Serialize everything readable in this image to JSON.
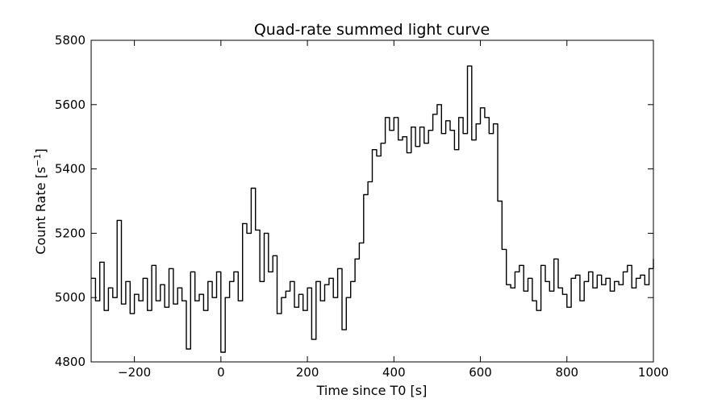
{
  "chart_data": {
    "type": "line",
    "title": "Quad-rate summed light curve",
    "xlabel": "Time since T0 [s]",
    "ylabel": "Count Rate [s",
    "ylabel_sup": "−1",
    "ylabel_end": "]",
    "xlim": [
      -300,
      1000
    ],
    "ylim": [
      4800,
      5800
    ],
    "xticks": [
      -200,
      0,
      200,
      400,
      600,
      800,
      1000
    ],
    "xtick_labels": [
      "−200",
      "0",
      "200",
      "400",
      "600",
      "800",
      "1000"
    ],
    "yticks": [
      4800,
      5000,
      5200,
      5400,
      5600,
      5800
    ],
    "ytick_labels": [
      "4800",
      "5000",
      "5200",
      "5400",
      "5600",
      "5800"
    ],
    "grid": false,
    "legend": false,
    "line_color": "#000000",
    "series": [
      {
        "x": [
          -300,
          -290,
          -280,
          -270,
          -260,
          -250,
          -240,
          -230,
          -220,
          -210,
          -200,
          -190,
          -180,
          -170,
          -160,
          -150,
          -140,
          -130,
          -120,
          -110,
          -100,
          -90,
          -80,
          -70,
          -60,
          -50,
          -40,
          -30,
          -20,
          -10,
          0,
          10,
          20,
          30,
          40,
          50,
          60,
          70,
          80,
          90,
          100,
          110,
          120,
          130,
          140,
          150,
          160,
          170,
          180,
          190,
          200,
          210,
          220,
          230,
          240,
          250,
          260,
          270,
          280,
          290,
          300,
          310,
          320,
          330,
          340,
          350,
          360,
          370,
          380,
          390,
          400,
          410,
          420,
          430,
          440,
          450,
          460,
          470,
          480,
          490,
          500,
          510,
          520,
          530,
          540,
          550,
          560,
          570,
          580,
          590,
          600,
          610,
          620,
          630,
          640,
          650,
          660,
          670,
          680,
          690,
          700,
          710,
          720,
          730,
          740,
          750,
          760,
          770,
          780,
          790,
          800,
          810,
          820,
          830,
          840,
          850,
          860,
          870,
          880,
          890,
          900,
          910,
          920,
          930,
          940,
          950,
          960,
          970,
          980,
          990,
          1000
        ],
        "values": [
          5060,
          4990,
          5110,
          4960,
          5030,
          5000,
          5240,
          4980,
          5050,
          4950,
          5010,
          4990,
          5060,
          4960,
          5100,
          4990,
          5040,
          4970,
          5090,
          4980,
          5030,
          4990,
          4840,
          5080,
          4990,
          5010,
          4960,
          5050,
          5000,
          5080,
          4830,
          5000,
          5050,
          5080,
          4990,
          5230,
          5200,
          5340,
          5210,
          5050,
          5200,
          5080,
          5130,
          4950,
          5000,
          5020,
          5050,
          4970,
          5010,
          4960,
          5030,
          4870,
          5050,
          4990,
          5040,
          5060,
          5000,
          5090,
          4900,
          5000,
          5050,
          5120,
          5170,
          5320,
          5360,
          5460,
          5440,
          5480,
          5560,
          5520,
          5560,
          5490,
          5500,
          5450,
          5530,
          5470,
          5530,
          5480,
          5520,
          5570,
          5600,
          5510,
          5550,
          5520,
          5460,
          5560,
          5510,
          5720,
          5490,
          5540,
          5590,
          5560,
          5510,
          5540,
          5300,
          5150,
          5040,
          5030,
          5080,
          5100,
          5020,
          5060,
          4990,
          4960,
          5100,
          5050,
          5020,
          5120,
          5030,
          5010,
          4970,
          5060,
          5070,
          4990,
          5050,
          5080,
          5030,
          5070,
          5040,
          5060,
          5020,
          5050,
          5040,
          5080,
          5100,
          5030,
          5060,
          5070,
          5040,
          5090,
          5120
        ]
      }
    ]
  }
}
